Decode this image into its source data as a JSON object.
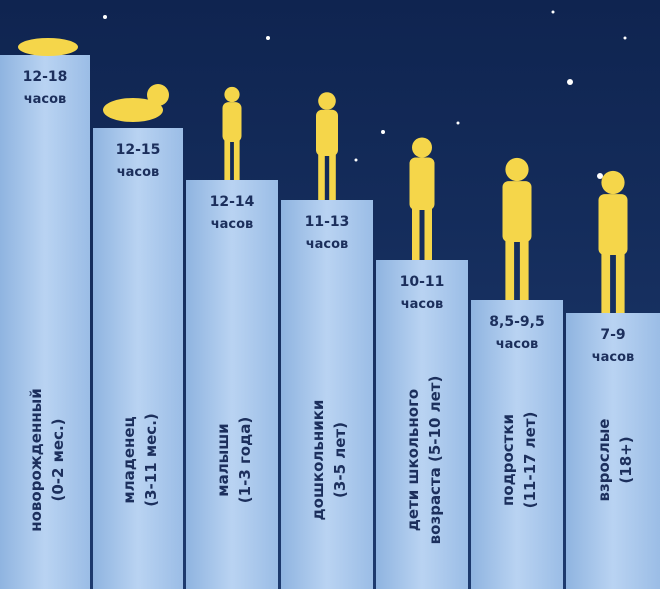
{
  "columns": [
    {
      "hours": "12-18",
      "unit": "часов",
      "group": "новорожденный",
      "age": "(0-2 мес.)"
    },
    {
      "hours": "12-15",
      "unit": "часов",
      "group": "младенец",
      "age": "(3-11 мес.)"
    },
    {
      "hours": "12-14",
      "unit": "часов",
      "group": "малыши",
      "age": "(1-3 года)"
    },
    {
      "hours": "11-13",
      "unit": "часов",
      "group": "дошкольники",
      "age": "(3-5 лет)"
    },
    {
      "hours": "10-11",
      "unit": "часов",
      "group": "дети школьного",
      "age": "возраста (5-10 лет)"
    },
    {
      "hours": "8,5-9,5",
      "unit": "часов",
      "group": "подростки",
      "age": "(11-17 лет)"
    },
    {
      "hours": "7-9",
      "unit": "часов",
      "group": "взрослые",
      "age": "(18+)"
    }
  ]
}
